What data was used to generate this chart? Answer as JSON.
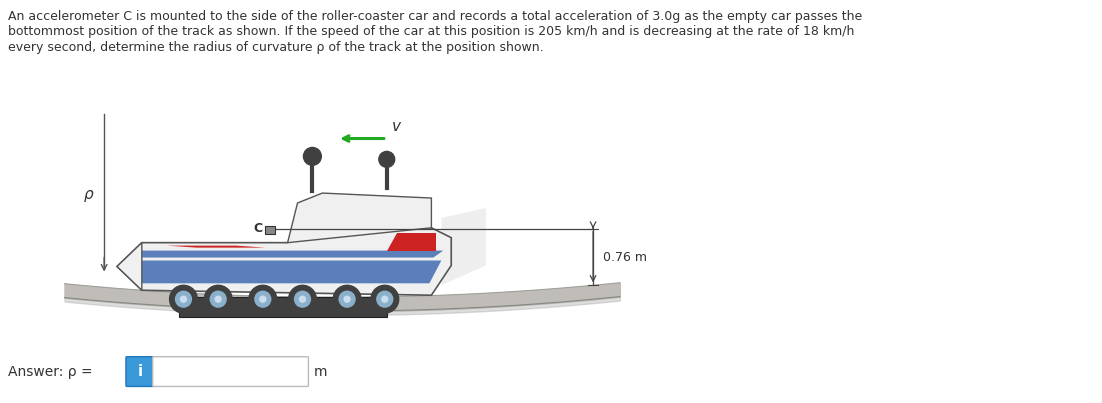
{
  "background_color": "#ffffff",
  "text_color": "#333333",
  "fig_width": 11.02,
  "fig_height": 4.03,
  "dpi": 100,
  "problem_line1": "An accelerometer C is mounted to the side of the roller-coaster car and records a total acceleration of 3.0g as the empty car passes the",
  "problem_line2": "bottommost position of the track as shown. If the speed of the car at this position is 205 km/h and is decreasing at the rate of 18 km/h",
  "problem_line3": "every second, determine the radius of curvature ρ of the track at the position shown.",
  "answer_prefix": "Answer: ρ =",
  "answer_unit": "m",
  "v_label": "v",
  "C_label": "C",
  "rho_label": "ρ",
  "dim_label": "0.76 m",
  "car_body_color": "#f0f0f0",
  "car_body_edge": "#555555",
  "car_blue_stripe": "#5b7fba",
  "car_blue_bottom": "#4a6aaa",
  "car_red": "#cc2222",
  "car_shadow": "#d8d8d8",
  "track_color": "#c0bdb8",
  "track_edge": "#a0a09a",
  "track_dark": "#888880",
  "wheel_dark": "#404040",
  "wheel_light": "#8ab0cc",
  "undercarriage": "#404040",
  "person_color": "#404040",
  "arrow_green": "#22aa22",
  "dim_color": "#444444",
  "rho_line_color": "#555555",
  "input_blue": "#3a9ad9",
  "input_box_border": "#bbbbbb"
}
